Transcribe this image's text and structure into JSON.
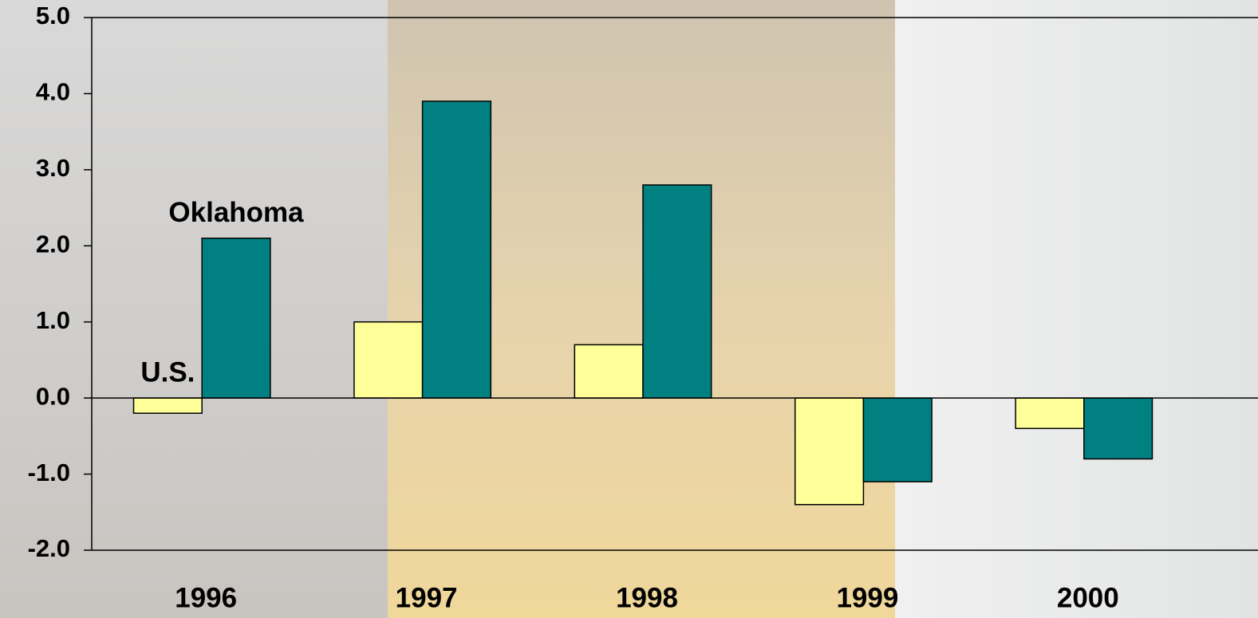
{
  "chart_data": {
    "type": "bar",
    "categories": [
      "1996",
      "1997",
      "1998",
      "1999",
      "2000"
    ],
    "series": [
      {
        "name": "U.S.",
        "color": "#ffff99",
        "values": [
          -0.2,
          1.0,
          0.7,
          -1.4,
          -0.4
        ]
      },
      {
        "name": "Oklahoma",
        "color": "#008080",
        "values": [
          2.1,
          3.9,
          2.8,
          -1.1,
          -0.8
        ]
      }
    ],
    "ylim": [
      -2,
      5
    ],
    "yticks": [
      {
        "value": -2,
        "label": "-2.0"
      },
      {
        "value": -1,
        "label": "-1.0"
      },
      {
        "value": 0,
        "label": "0.0"
      },
      {
        "value": 1,
        "label": "1.0"
      },
      {
        "value": 2,
        "label": "2.0"
      },
      {
        "value": 3,
        "label": "3.0"
      },
      {
        "value": 4,
        "label": "4.0"
      },
      {
        "value": 5,
        "label": "5.0"
      }
    ],
    "grid": false
  }
}
